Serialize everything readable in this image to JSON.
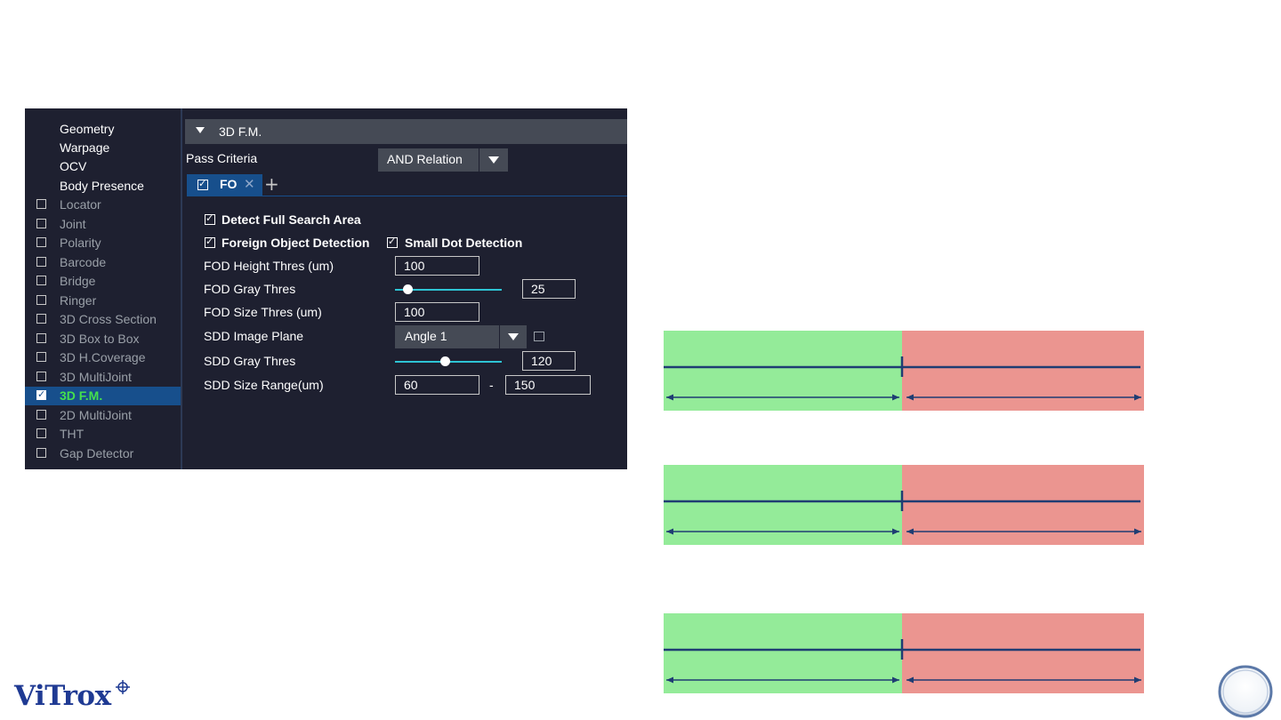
{
  "sidebar": {
    "headers": [
      "Geometry",
      "Warpage",
      "OCV",
      "Body Presence"
    ],
    "items": [
      {
        "label": "Locator",
        "checked": false,
        "active": false
      },
      {
        "label": "Joint",
        "checked": false,
        "active": false
      },
      {
        "label": "Polarity",
        "checked": false,
        "active": false
      },
      {
        "label": "Barcode",
        "checked": false,
        "active": false
      },
      {
        "label": "Bridge",
        "checked": false,
        "active": false
      },
      {
        "label": "Ringer",
        "checked": false,
        "active": false
      },
      {
        "label": "3D Cross Section",
        "checked": false,
        "active": false
      },
      {
        "label": "3D Box to Box",
        "checked": false,
        "active": false
      },
      {
        "label": "3D H.Coverage",
        "checked": false,
        "active": false
      },
      {
        "label": "3D MultiJoint",
        "checked": false,
        "active": false
      },
      {
        "label": "3D F.M.",
        "checked": true,
        "active": true
      },
      {
        "label": "2D MultiJoint",
        "checked": false,
        "active": false
      },
      {
        "label": "THT",
        "checked": false,
        "active": false
      },
      {
        "label": "Gap Detector",
        "checked": false,
        "active": false
      }
    ]
  },
  "section": {
    "title": "3D F.M.",
    "icon": "triangle-down-icon"
  },
  "pass_criteria": {
    "label": "Pass Criteria",
    "value": "AND Relation"
  },
  "tab": {
    "name": "FO",
    "checked": true,
    "close_icon": "close-icon",
    "add_icon": "plus-icon"
  },
  "options": {
    "detect_full_search_area": {
      "label": "Detect Full Search Area",
      "checked": true
    },
    "foreign_object_detection": {
      "label": "Foreign Object Detection",
      "checked": true
    },
    "small_dot_detection": {
      "label": "Small Dot Detection",
      "checked": true
    }
  },
  "params": {
    "fod_height": {
      "label": "FOD Height Thres (um)",
      "value": "100"
    },
    "fod_gray": {
      "label": "FOD Gray Thres",
      "value": "25",
      "slider_fraction": 0.12
    },
    "fod_size": {
      "label": "FOD Size Thres (um)",
      "value": "100"
    },
    "sdd_image_plane": {
      "label": "SDD Image Plane",
      "value": "Angle 1",
      "icon": "image-icon"
    },
    "sdd_gray": {
      "label": "SDD Gray Thres",
      "value": "120",
      "slider_fraction": 0.47
    },
    "sdd_size_range": {
      "label": "SDD Size Range(um)",
      "min": "60",
      "separator": "-",
      "max": "150"
    }
  },
  "colors": {
    "green_zone": "#94eb99",
    "red_zone": "#eb9590",
    "line": "#1f3d73",
    "panel_bg": "#1e2030",
    "selected": "#174f8c",
    "active_text": "#45e04d"
  },
  "logo": {
    "text": "ViTrox"
  }
}
